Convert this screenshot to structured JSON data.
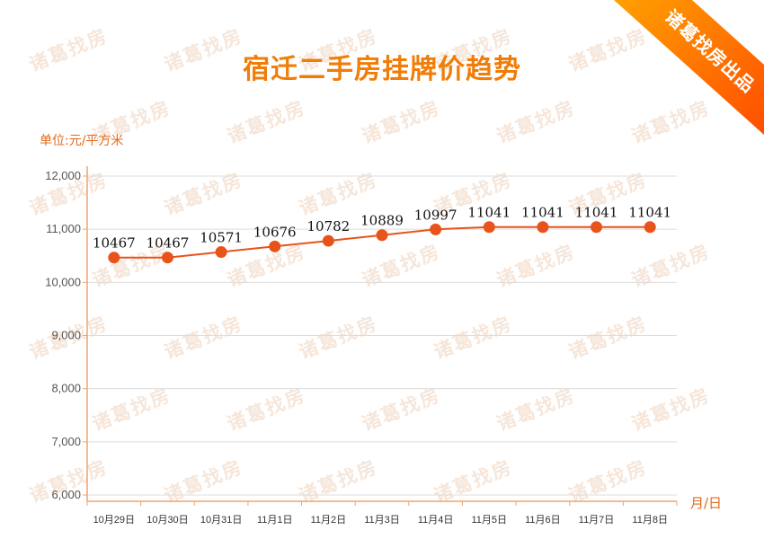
{
  "ribbon": {
    "text": "诸葛找房出品"
  },
  "watermark": {
    "text": "诸葛找房"
  },
  "colors": {
    "title": "#f07d08",
    "unit_label": "#e06a1c",
    "line": "#e8531a",
    "point": "#e8531a",
    "axis": "#f0a46c",
    "grid": "#dcdcdc",
    "ribbon_start": "#ffa000",
    "ribbon_end": "#ff4e00",
    "watermark": "#f3dccb"
  },
  "chart_data": {
    "type": "line",
    "title": "宿迁二手房挂牌价趋势",
    "ylabel": "单位:元/平方米",
    "xlabel": "月/日",
    "categories": [
      "10月29日",
      "10月30日",
      "10月31日",
      "11月1日",
      "11月2日",
      "11月3日",
      "11月4日",
      "11月5日",
      "11月6日",
      "11月7日",
      "11月8日"
    ],
    "series": [
      {
        "values": [
          10467,
          10467,
          10571,
          10676,
          10782,
          10889,
          10997,
          11041,
          11041,
          11041,
          11041
        ]
      }
    ],
    "ylim": [
      6000,
      12000
    ],
    "yticks": [
      6000,
      7000,
      8000,
      9000,
      10000,
      11000,
      12000
    ],
    "grid": true,
    "data_labels": true,
    "legend": "none"
  }
}
